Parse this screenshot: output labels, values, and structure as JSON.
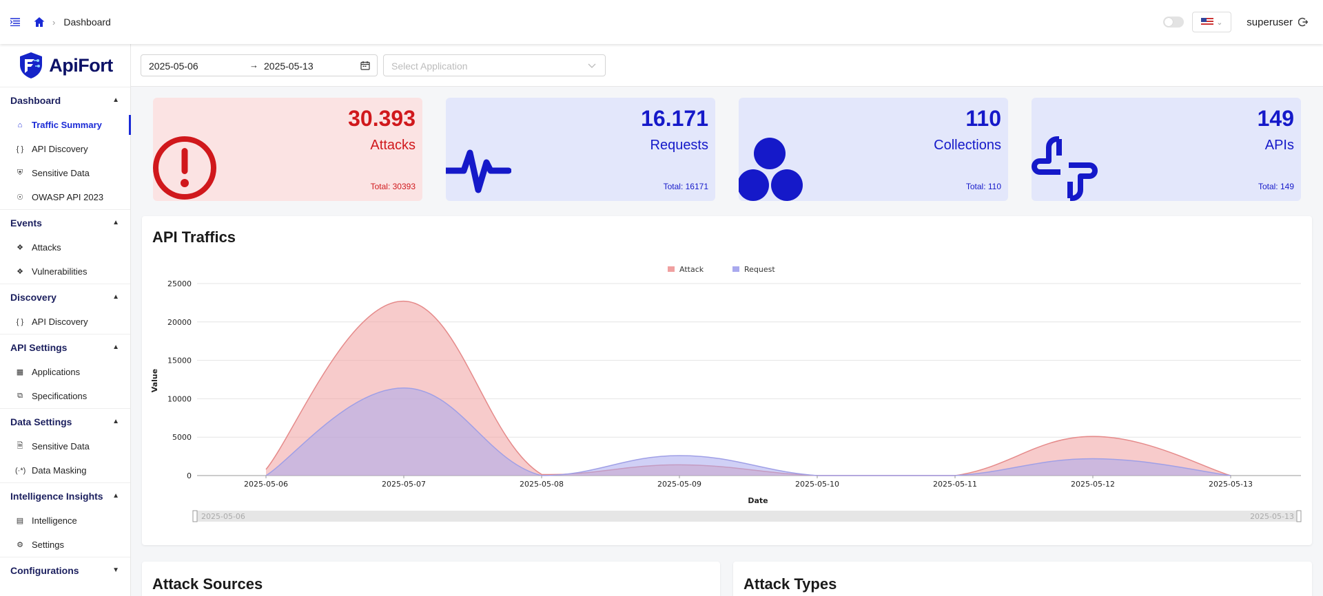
{
  "header": {
    "breadcrumb": "Dashboard",
    "user": "superuser"
  },
  "brand": {
    "name": "ApiFort"
  },
  "sidebar": {
    "sections": [
      {
        "title": "Dashboard",
        "expanded": true,
        "items": [
          {
            "label": "Traffic Summary",
            "icon": "home-icon",
            "active": true
          },
          {
            "label": "API Discovery",
            "icon": "braces-icon"
          },
          {
            "label": "Sensitive Data",
            "icon": "shield-icon"
          },
          {
            "label": "OWASP API 2023",
            "icon": "compass-icon"
          }
        ]
      },
      {
        "title": "Events",
        "expanded": true,
        "items": [
          {
            "label": "Attacks",
            "icon": "radar-icon"
          },
          {
            "label": "Vulnerabilities",
            "icon": "radar-icon"
          }
        ]
      },
      {
        "title": "Discovery",
        "expanded": true,
        "items": [
          {
            "label": "API Discovery",
            "icon": "braces-icon"
          }
        ]
      },
      {
        "title": "API Settings",
        "expanded": true,
        "items": [
          {
            "label": "Applications",
            "icon": "grid-icon"
          },
          {
            "label": "Specifications",
            "icon": "doc-icon"
          }
        ]
      },
      {
        "title": "Data Settings",
        "expanded": true,
        "items": [
          {
            "label": "Sensitive Data",
            "icon": "file-icon"
          },
          {
            "label": "Data Masking",
            "icon": "mask-icon"
          }
        ]
      },
      {
        "title": "Intelligence Insights",
        "expanded": true,
        "items": [
          {
            "label": "Intelligence",
            "icon": "list-icon"
          },
          {
            "label": "Settings",
            "icon": "gear-icon"
          }
        ]
      },
      {
        "title": "Configurations",
        "expanded": false,
        "items": []
      }
    ]
  },
  "filters": {
    "date_from": "2025-05-06",
    "date_to": "2025-05-13",
    "app_placeholder": "Select Application"
  },
  "stats": [
    {
      "value": "30.393",
      "label": "Attacks",
      "total": "Total: 30393",
      "color": "#d0181c"
    },
    {
      "value": "16.171",
      "label": "Requests",
      "total": "Total: 16171",
      "color": "#1519c9"
    },
    {
      "value": "110",
      "label": "Collections",
      "total": "Total: 110",
      "color": "#1519c9"
    },
    {
      "value": "149",
      "label": "APIs",
      "total": "Total: 149",
      "color": "#1519c9"
    }
  ],
  "traffic": {
    "title": "API Traffics",
    "slider_start": "2025-05-06",
    "slider_end": "2025-05-13"
  },
  "chart_data": {
    "type": "area",
    "title": "API Traffics",
    "xlabel": "Date",
    "ylabel": "Value",
    "x": [
      "2025-05-06",
      "2025-05-07",
      "2025-05-08",
      "2025-05-09",
      "2025-05-10",
      "2025-05-11",
      "2025-05-12",
      "2025-05-13"
    ],
    "ylim": [
      0,
      25000
    ],
    "yticks": [
      0,
      5000,
      10000,
      15000,
      20000,
      25000
    ],
    "legend_position": "top-center",
    "grid": true,
    "series": [
      {
        "name": "Attack",
        "values": [
          800,
          22700,
          150,
          1400,
          0,
          0,
          5100,
          0
        ],
        "color": "#f0a0a0"
      },
      {
        "name": "Request",
        "values": [
          0,
          11400,
          0,
          2600,
          0,
          0,
          2200,
          0
        ],
        "color": "#a9a9ee"
      }
    ]
  },
  "bottom": {
    "attack_sources": "Attack Sources",
    "attack_types": "Attack Types"
  }
}
